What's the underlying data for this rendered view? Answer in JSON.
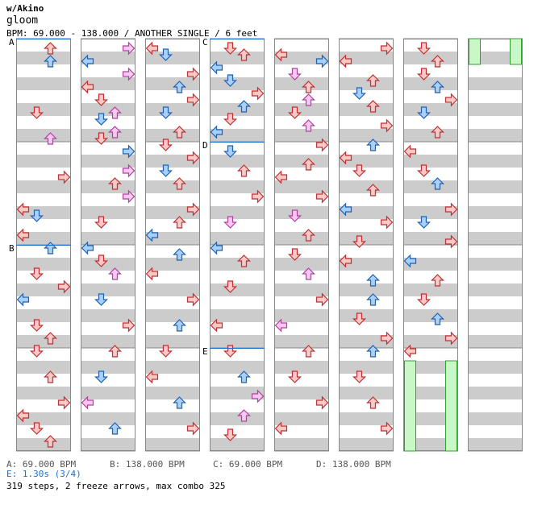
{
  "header": {
    "artist": "w/Akino",
    "song": "gloom",
    "info": "BPM: 69.000 - 138.000 / ANOTHER SINGLE / 6 feet"
  },
  "sections": [
    {
      "label": "A",
      "column": 0,
      "beat": 0
    },
    {
      "label": "B",
      "column": 0,
      "beat": 32
    },
    {
      "label": "C",
      "column": 3,
      "beat": 0
    },
    {
      "label": "D",
      "column": 3,
      "beat": 16
    },
    {
      "label": "E",
      "column": 3,
      "beat": 48
    }
  ],
  "bpm_legend": [
    {
      "key": "A",
      "text": "A: 69.000 BPM"
    },
    {
      "key": "B",
      "text": "B: 138.000 BPM"
    },
    {
      "key": "C",
      "text": "C: 69.000 BPM"
    },
    {
      "key": "D",
      "text": "D: 138.000 BPM"
    }
  ],
  "stop_text": "E: 1.30s (3/4)",
  "summary": "319 steps, 2 freeze arrows, max combo 325",
  "colors": {
    "red_fill": "#f9c9c9",
    "red_stroke": "#c03030",
    "blue_fill": "#a8d0f8",
    "blue_stroke": "#2060b0",
    "pink_fill": "#f8c8f0",
    "pink_stroke": "#b040a0",
    "freeze_fill": "#c8f8c8",
    "freeze_stroke": "#30a030",
    "stripe": "#cccccc",
    "section_line": "#1a6fd6"
  },
  "chart_data": {
    "type": "step-chart",
    "columns": 8,
    "beats_per_column": 64,
    "lanes": [
      "left",
      "down",
      "up",
      "right"
    ],
    "notes": [
      [
        [
          1,
          2,
          "red"
        ],
        [
          3,
          2,
          "blue"
        ],
        [
          11,
          1,
          "red"
        ],
        [
          15,
          2,
          "pink"
        ],
        [
          21,
          3,
          "red"
        ],
        [
          26,
          0,
          "red"
        ],
        [
          27,
          1,
          "blue"
        ],
        [
          30,
          0,
          "red"
        ],
        [
          32,
          2,
          "blue"
        ],
        [
          36,
          1,
          "red"
        ],
        [
          38,
          3,
          "red"
        ],
        [
          40,
          0,
          "blue"
        ],
        [
          44,
          1,
          "red"
        ],
        [
          46,
          2,
          "red"
        ],
        [
          48,
          1,
          "red"
        ],
        [
          52,
          2,
          "red"
        ],
        [
          56,
          3,
          "red"
        ],
        [
          58,
          0,
          "red"
        ],
        [
          60,
          1,
          "red"
        ],
        [
          62,
          2,
          "red"
        ]
      ],
      [
        [
          1,
          3,
          "pink"
        ],
        [
          3,
          0,
          "blue"
        ],
        [
          5,
          3,
          "pink"
        ],
        [
          7,
          0,
          "red"
        ],
        [
          9,
          1,
          "red"
        ],
        [
          11,
          2,
          "pink"
        ],
        [
          12,
          1,
          "blue"
        ],
        [
          14,
          2,
          "pink"
        ],
        [
          15,
          1,
          "red"
        ],
        [
          17,
          3,
          "blue"
        ],
        [
          20,
          3,
          "pink"
        ],
        [
          22,
          2,
          "red"
        ],
        [
          24,
          3,
          "pink"
        ],
        [
          28,
          1,
          "red"
        ],
        [
          32,
          0,
          "blue"
        ],
        [
          34,
          1,
          "red"
        ],
        [
          36,
          2,
          "pink"
        ],
        [
          40,
          1,
          "blue"
        ],
        [
          44,
          3,
          "red"
        ],
        [
          48,
          2,
          "red"
        ],
        [
          52,
          1,
          "blue"
        ],
        [
          56,
          0,
          "pink"
        ],
        [
          60,
          2,
          "blue"
        ]
      ],
      [
        [
          1,
          0,
          "red"
        ],
        [
          2,
          1,
          "blue"
        ],
        [
          5,
          3,
          "red"
        ],
        [
          7,
          2,
          "blue"
        ],
        [
          9,
          3,
          "red"
        ],
        [
          11,
          1,
          "blue"
        ],
        [
          14,
          2,
          "red"
        ],
        [
          16,
          1,
          "red"
        ],
        [
          18,
          3,
          "red"
        ],
        [
          20,
          1,
          "blue"
        ],
        [
          22,
          2,
          "red"
        ],
        [
          26,
          3,
          "red"
        ],
        [
          28,
          2,
          "red"
        ],
        [
          30,
          0,
          "blue"
        ],
        [
          33,
          2,
          "blue"
        ],
        [
          36,
          0,
          "red"
        ],
        [
          40,
          3,
          "red"
        ],
        [
          44,
          2,
          "blue"
        ],
        [
          48,
          1,
          "red"
        ],
        [
          52,
          0,
          "red"
        ],
        [
          56,
          2,
          "blue"
        ],
        [
          60,
          3,
          "red"
        ]
      ],
      [
        [
          1,
          1,
          "red"
        ],
        [
          2,
          2,
          "red"
        ],
        [
          4,
          0,
          "blue"
        ],
        [
          6,
          1,
          "blue"
        ],
        [
          8,
          3,
          "red"
        ],
        [
          10,
          2,
          "blue"
        ],
        [
          12,
          1,
          "red"
        ],
        [
          14,
          0,
          "blue"
        ],
        [
          17,
          1,
          "blue"
        ],
        [
          20,
          2,
          "red"
        ],
        [
          24,
          3,
          "red"
        ],
        [
          28,
          1,
          "pink"
        ],
        [
          32,
          0,
          "blue"
        ],
        [
          34,
          2,
          "red"
        ],
        [
          38,
          1,
          "red"
        ],
        [
          44,
          0,
          "red"
        ],
        [
          48,
          1,
          "red"
        ],
        [
          52,
          2,
          "blue"
        ],
        [
          55,
          3,
          "pink"
        ],
        [
          58,
          2,
          "pink"
        ],
        [
          61,
          1,
          "red"
        ]
      ],
      [
        [
          2,
          0,
          "red"
        ],
        [
          3,
          3,
          "blue"
        ],
        [
          5,
          1,
          "pink"
        ],
        [
          7,
          2,
          "red"
        ],
        [
          9,
          2,
          "pink"
        ],
        [
          11,
          1,
          "red"
        ],
        [
          13,
          2,
          "pink"
        ],
        [
          16,
          3,
          "red"
        ],
        [
          19,
          2,
          "red"
        ],
        [
          21,
          0,
          "red"
        ],
        [
          24,
          3,
          "red"
        ],
        [
          27,
          1,
          "pink"
        ],
        [
          30,
          2,
          "red"
        ],
        [
          33,
          1,
          "red"
        ],
        [
          36,
          2,
          "pink"
        ],
        [
          40,
          3,
          "red"
        ],
        [
          44,
          0,
          "pink"
        ],
        [
          48,
          2,
          "red"
        ],
        [
          52,
          1,
          "red"
        ],
        [
          56,
          3,
          "red"
        ],
        [
          60,
          0,
          "red"
        ]
      ],
      [
        [
          1,
          3,
          "red"
        ],
        [
          3,
          0,
          "red"
        ],
        [
          6,
          2,
          "red"
        ],
        [
          8,
          1,
          "blue"
        ],
        [
          10,
          2,
          "red"
        ],
        [
          13,
          3,
          "red"
        ],
        [
          16,
          2,
          "blue"
        ],
        [
          18,
          0,
          "red"
        ],
        [
          20,
          1,
          "red"
        ],
        [
          23,
          2,
          "red"
        ],
        [
          26,
          0,
          "blue"
        ],
        [
          28,
          3,
          "red"
        ],
        [
          31,
          1,
          "red"
        ],
        [
          34,
          0,
          "red"
        ],
        [
          37,
          2,
          "blue"
        ],
        [
          40,
          2,
          "blue"
        ],
        [
          43,
          1,
          "red"
        ],
        [
          46,
          3,
          "red"
        ],
        [
          48,
          2,
          "blue"
        ],
        [
          52,
          1,
          "red"
        ],
        [
          56,
          2,
          "red"
        ],
        [
          60,
          3,
          "red"
        ]
      ],
      [
        [
          1,
          1,
          "red"
        ],
        [
          3,
          2,
          "red"
        ],
        [
          5,
          1,
          "red"
        ],
        [
          7,
          2,
          "blue"
        ],
        [
          9,
          3,
          "red"
        ],
        [
          11,
          1,
          "blue"
        ],
        [
          14,
          2,
          "red"
        ],
        [
          17,
          0,
          "red"
        ],
        [
          20,
          1,
          "red"
        ],
        [
          22,
          2,
          "blue"
        ],
        [
          26,
          3,
          "red"
        ],
        [
          28,
          1,
          "blue"
        ],
        [
          31,
          3,
          "red"
        ],
        [
          34,
          0,
          "blue"
        ],
        [
          37,
          2,
          "red"
        ],
        [
          40,
          1,
          "red"
        ],
        [
          43,
          2,
          "blue"
        ],
        [
          46,
          3,
          "red"
        ],
        [
          48,
          0,
          "red"
        ]
      ]
    ],
    "freezes": [
      {
        "column": 7,
        "lane": 0,
        "start": 0,
        "end": 4
      },
      {
        "column": 7,
        "lane": 3,
        "start": 0,
        "end": 4
      },
      {
        "column": 6,
        "lane": 0,
        "start": 50,
        "end": 64
      },
      {
        "column": 6,
        "lane": 3,
        "start": 50,
        "end": 64
      }
    ]
  }
}
